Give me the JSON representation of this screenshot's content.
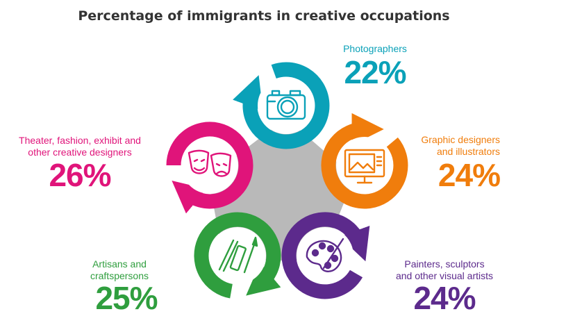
{
  "title": "Percentage of immigrants in creative occupations",
  "chart_data": {
    "type": "infographic",
    "title": "Percentage of immigrants in creative occupations",
    "unit": "%",
    "categories": [
      "Photographers",
      "Graphic designers and illustrators",
      "Painters, sculptors and other visual artists",
      "Artisans and craftspersons",
      "Theater, fashion, exhibit and other creative designers"
    ],
    "values": [
      22,
      24,
      24,
      25,
      26
    ],
    "colors": [
      "#0aa1b8",
      "#f07d0c",
      "#5c2a8c",
      "#2f9e3e",
      "#e0147a"
    ],
    "icons": [
      "camera-icon",
      "monitor-icon",
      "palette-icon",
      "paint-tools-icon",
      "theater-masks-icon"
    ]
  },
  "labels": [
    {
      "lines": [
        "Photographers"
      ],
      "value": "22%"
    },
    {
      "lines": [
        "Graphic designers",
        "and illustrators"
      ],
      "value": "24%"
    },
    {
      "lines": [
        "Painters, sculptors",
        "and other visual artists"
      ],
      "value": "24%"
    },
    {
      "lines": [
        "Artisans and",
        "craftspersons"
      ],
      "value": "25%"
    },
    {
      "lines": [
        "Theater, fashion, exhibit and",
        "other creative designers"
      ],
      "value": "26%"
    }
  ]
}
